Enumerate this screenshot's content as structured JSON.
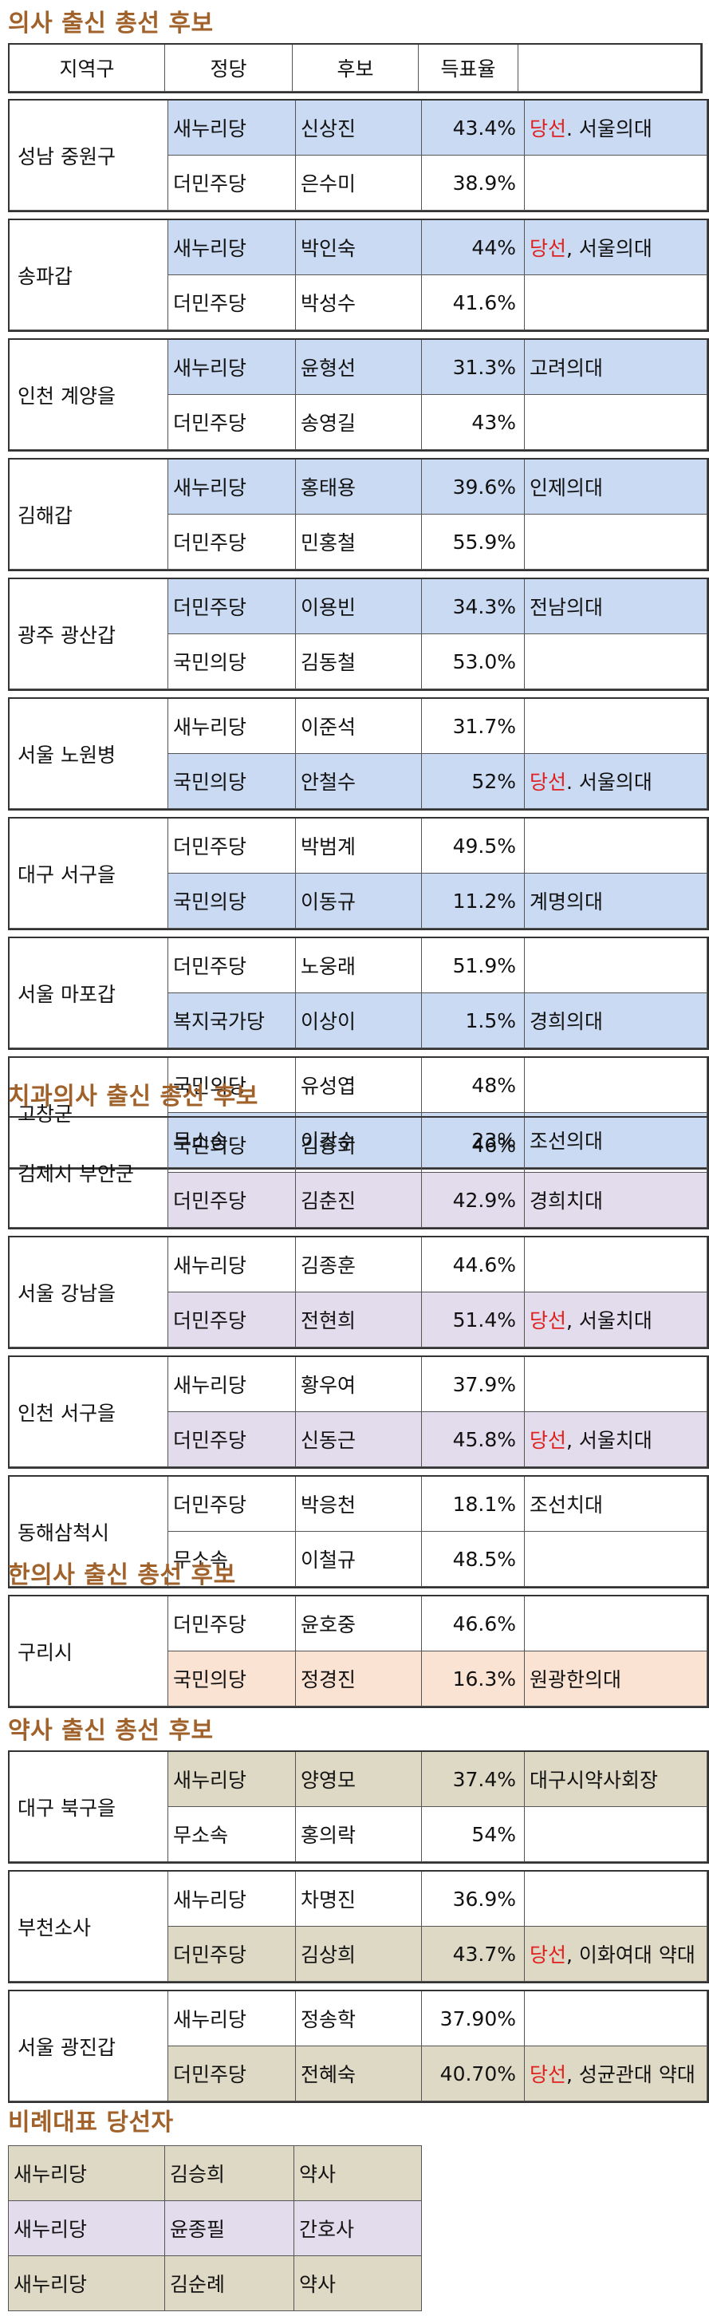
{
  "sections": [
    {
      "title": "의사 출신 총선 후보",
      "highlight": "blue",
      "header": [
        "지역구",
        "정당",
        "후보",
        "득표율",
        ""
      ],
      "districts": [
        {
          "region": "성남 중원구",
          "rows": [
            {
              "party": "새누리당",
              "candidate": "신상진",
              "rate": "43.4%",
              "elected": "당선",
              "school": ". 서울의대",
              "hl": true
            },
            {
              "party": "더민주당",
              "candidate": "은수미",
              "rate": "38.9%",
              "elected": "",
              "school": "",
              "hl": false
            }
          ]
        },
        {
          "region": "송파갑",
          "rows": [
            {
              "party": "새누리당",
              "candidate": "박인숙",
              "rate": "44%",
              "elected": "당선",
              "school": ", 서울의대",
              "hl": true
            },
            {
              "party": "더민주당",
              "candidate": "박성수",
              "rate": "41.6%",
              "elected": "",
              "school": "",
              "hl": false
            }
          ]
        },
        {
          "region": "인천 계양을",
          "rows": [
            {
              "party": "새누리당",
              "candidate": "윤형선",
              "rate": "31.3%",
              "elected": "",
              "school": "고려의대",
              "hl": true
            },
            {
              "party": "더민주당",
              "candidate": "송영길",
              "rate": "43%",
              "elected": "",
              "school": "",
              "hl": false
            }
          ]
        },
        {
          "region": "김해갑",
          "rows": [
            {
              "party": "새누리당",
              "candidate": "홍태용",
              "rate": "39.6%",
              "elected": "",
              "school": "인제의대",
              "hl": true
            },
            {
              "party": "더민주당",
              "candidate": "민홍철",
              "rate": "55.9%",
              "elected": "",
              "school": "",
              "hl": false
            }
          ]
        },
        {
          "region": "광주 광산갑",
          "rows": [
            {
              "party": "더민주당",
              "candidate": "이용빈",
              "rate": "34.3%",
              "elected": "",
              "school": "전남의대",
              "hl": true
            },
            {
              "party": "국민의당",
              "candidate": "김동철",
              "rate": "53.0%",
              "elected": "",
              "school": "",
              "hl": false
            }
          ]
        },
        {
          "region": "서울 노원병",
          "rows": [
            {
              "party": "새누리당",
              "candidate": "이준석",
              "rate": "31.7%",
              "elected": "",
              "school": "",
              "hl": false
            },
            {
              "party": "국민의당",
              "candidate": "안철수",
              "rate": "52%",
              "elected": "당선",
              "school": ". 서울의대",
              "hl": true
            }
          ]
        },
        {
          "region": "대구 서구을",
          "rows": [
            {
              "party": "더민주당",
              "candidate": "박범계",
              "rate": "49.5%",
              "elected": "",
              "school": "",
              "hl": false
            },
            {
              "party": "국민의당",
              "candidate": "이동규",
              "rate": "11.2%",
              "elected": "",
              "school": "계명의대",
              "hl": true
            }
          ]
        },
        {
          "region": "서울 마포갑",
          "rows": [
            {
              "party": "더민주당",
              "candidate": "노웅래",
              "rate": "51.9%",
              "elected": "",
              "school": "",
              "hl": false
            },
            {
              "party": "복지국가당",
              "candidate": "이상이",
              "rate": "1.5%",
              "elected": "",
              "school": "경희의대",
              "hl": true
            }
          ]
        },
        {
          "region": "고창군",
          "rows": [
            {
              "party": "국민의당",
              "candidate": "유성엽",
              "rate": "48%",
              "elected": "",
              "school": "",
              "hl": false
            },
            {
              "party": "무소송",
              "candidate": "이강수",
              "rate": "23%",
              "elected": "",
              "school": "조선의대",
              "hl": true
            }
          ]
        }
      ]
    },
    {
      "title": "치과의사 출신 총선 후보",
      "highlight": "purple",
      "districts": [
        {
          "region": "김제시 부안군",
          "rows": [
            {
              "party": "국민의당",
              "candidate": "김종회",
              "rate": "46%",
              "elected": "",
              "school": "",
              "hl": false
            },
            {
              "party": "더민주당",
              "candidate": "김춘진",
              "rate": "42.9%",
              "elected": "",
              "school": "경희치대",
              "hl": true
            }
          ]
        },
        {
          "region": "서울 강남을",
          "rows": [
            {
              "party": "새누리당",
              "candidate": "김종훈",
              "rate": "44.6%",
              "elected": "",
              "school": "",
              "hl": false
            },
            {
              "party": "더민주당",
              "candidate": "전현희",
              "rate": "51.4%",
              "elected": "당선",
              "school": ", 서울치대",
              "hl": true
            }
          ]
        },
        {
          "region": "인천 서구을",
          "rows": [
            {
              "party": "새누리당",
              "candidate": "황우여",
              "rate": "37.9%",
              "elected": "",
              "school": "",
              "hl": false
            },
            {
              "party": "더민주당",
              "candidate": "신동근",
              "rate": "45.8%",
              "elected": "당선",
              "school": ", 서울치대",
              "hl": true
            }
          ]
        },
        {
          "region": "동해삼척시",
          "rows": [
            {
              "party": "더민주당",
              "candidate": "박응천",
              "rate": "18.1%",
              "elected": "",
              "school": "조선치대",
              "hl": false
            },
            {
              "party": "무소속",
              "candidate": "이철규",
              "rate": "48.5%",
              "elected": "",
              "school": "",
              "hl": false
            }
          ]
        }
      ]
    },
    {
      "title": "한의사 출신 총선 후보",
      "highlight": "peach",
      "districts": [
        {
          "region": "구리시",
          "rows": [
            {
              "party": "더민주당",
              "candidate": "윤호중",
              "rate": "46.6%",
              "elected": "",
              "school": "",
              "hl": false
            },
            {
              "party": "국민의당",
              "candidate": "정경진",
              "rate": "16.3%",
              "elected": "",
              "school": "원광한의대",
              "hl": true
            }
          ]
        }
      ]
    },
    {
      "title": "약사 출신 총선 후보",
      "highlight": "khaki",
      "districts": [
        {
          "region": "대구 북구을",
          "rows": [
            {
              "party": "새누리당",
              "candidate": "양영모",
              "rate": "37.4%",
              "elected": "",
              "school": "대구시약사회장",
              "hl": true
            },
            {
              "party": "무소속",
              "candidate": "홍의락",
              "rate": "54%",
              "elected": "",
              "school": "",
              "hl": false
            }
          ]
        },
        {
          "region": "부천소사",
          "rows": [
            {
              "party": "새누리당",
              "candidate": "차명진",
              "rate": "36.9%",
              "elected": "",
              "school": "",
              "hl": false
            },
            {
              "party": "더민주당",
              "candidate": "김상희",
              "rate": "43.7%",
              "elected": "당선",
              "school": ", 이화여대 약대",
              "hl": true
            }
          ]
        },
        {
          "region": "서울 광진갑",
          "rows": [
            {
              "party": "새누리당",
              "candidate": "정송학",
              "rate": "37.90%",
              "elected": "",
              "school": "",
              "hl": false
            },
            {
              "party": "더민주당",
              "candidate": "전혜숙",
              "rate": "40.70%",
              "elected": "당선",
              "school": ", 성균관대 약대",
              "hl": true
            }
          ]
        }
      ]
    }
  ],
  "proportional": {
    "title": "비례대표 당선자",
    "rows": [
      {
        "party": "새누리당",
        "name": "김승희",
        "job": "약사",
        "bg": "#ded9c5"
      },
      {
        "party": "새누리당",
        "name": "윤종필",
        "job": "간호사",
        "bg": "#e2dcec"
      },
      {
        "party": "새누리당",
        "name": "김순례",
        "job": "약사",
        "bg": "#ded9c5"
      }
    ]
  }
}
